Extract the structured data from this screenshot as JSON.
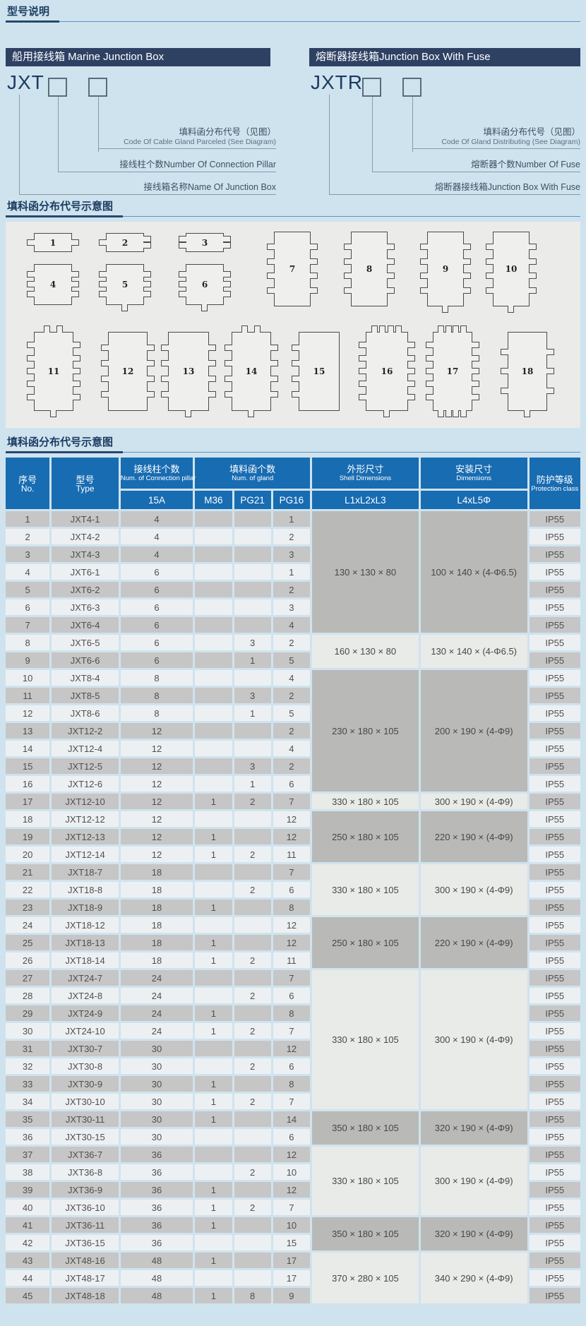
{
  "titles": {
    "model": "型号说明",
    "diagram": "填科函分布代号示意图",
    "table": "填科函分布代号示意图"
  },
  "marine_box": {
    "header": "船用接线箱 Marine Junction Box",
    "code": "JXT",
    "label1_zh": "填料函分布代号（见图）",
    "label1_en": "Code Of Cable Gland Parceled (See Diagram)",
    "label2": "接线柱个数Number Of Connection Pillar",
    "label3": "接线箱名称Name Of Junction Box"
  },
  "fuse_box": {
    "header": "熔断器接线箱Junction Box With Fuse",
    "code": "JXTR",
    "label1_zh": "填料函分布代号（见图）",
    "label1_en": "Code Of Gland Distributing (See Diagram)",
    "label2": "熔断器个数Number Of Fuse",
    "label3": "熔断器接线箱Junction Box With Fuse"
  },
  "diagram": {
    "boxes": [
      {
        "n": "1",
        "l": 1,
        "r": 1,
        "t": 0,
        "b": 0
      },
      {
        "n": "2",
        "l": 1,
        "r": 2,
        "t": 0,
        "b": 0
      },
      {
        "n": "3",
        "l": 2,
        "r": 2,
        "t": 0,
        "b": 0
      },
      {
        "n": "4",
        "l": 3,
        "r": 3,
        "t": 0,
        "b": 0
      },
      {
        "n": "5",
        "l": 3,
        "r": 3,
        "t": 0,
        "b": 1
      },
      {
        "n": "6",
        "l": 3,
        "r": 3,
        "t": 0,
        "b": 1
      },
      {
        "n": "7",
        "l": 4,
        "r": 4,
        "t": 0,
        "b": 0
      },
      {
        "n": "8",
        "l": 4,
        "r": 4,
        "t": 0,
        "b": 0
      },
      {
        "n": "9",
        "l": 4,
        "r": 4,
        "t": 0,
        "b": 1
      },
      {
        "n": "10",
        "l": 4,
        "r": 4,
        "t": 0,
        "b": 1
      },
      {
        "n": "11",
        "l": 5,
        "r": 5,
        "t": 2,
        "b": 1
      },
      {
        "n": "12",
        "l": 4,
        "r": 4,
        "t": 0,
        "b": 0
      },
      {
        "n": "13",
        "l": 4,
        "r": 4,
        "t": 0,
        "b": 1
      },
      {
        "n": "14",
        "l": 4,
        "r": 4,
        "t": 2,
        "b": 1
      },
      {
        "n": "15",
        "l": 4,
        "r": 0,
        "t": 0,
        "b": 0
      },
      {
        "n": "16",
        "l": 5,
        "r": 5,
        "t": 4,
        "b": 1
      },
      {
        "n": "17",
        "l": 5,
        "r": 5,
        "t": 4,
        "b": 4
      },
      {
        "n": "18",
        "l": 3,
        "r": 3,
        "t": 0,
        "b": 1
      }
    ]
  },
  "table": {
    "headers": {
      "no_zh": "序号",
      "no_en": "No.",
      "type_zh": "型号",
      "type_en": "Type",
      "pillar_zh": "接线柱个数",
      "pillar_en": "Num. of Connection pillar",
      "pillar_sub": "15A",
      "gland_zh": "填料函个数",
      "gland_en": "Num. of gland",
      "gland_sub": [
        "M36",
        "PG21",
        "PG16"
      ],
      "shell_zh": "外形尺寸",
      "shell_en": "Shell Dimensions",
      "shell_sub": "L1xL2xL3",
      "mount_zh": "安装尺寸",
      "mount_en": "Dimensions",
      "mount_sub": "L4xL5Φ",
      "ip_zh": "防护等级",
      "ip_en": "Protection class"
    },
    "columns": [
      "no",
      "type",
      "15a",
      "m36",
      "pg21",
      "pg16",
      "ip"
    ],
    "rows": [
      [
        "1",
        "JXT4-1",
        "4",
        "",
        "",
        "1",
        "IP55"
      ],
      [
        "2",
        "JXT4-2",
        "4",
        "",
        "",
        "2",
        "IP55"
      ],
      [
        "3",
        "JXT4-3",
        "4",
        "",
        "",
        "3",
        "IP55"
      ],
      [
        "4",
        "JXT6-1",
        "6",
        "",
        "",
        "1",
        "IP55"
      ],
      [
        "5",
        "JXT6-2",
        "6",
        "",
        "",
        "2",
        "IP55"
      ],
      [
        "6",
        "JXT6-3",
        "6",
        "",
        "",
        "3",
        "IP55"
      ],
      [
        "7",
        "JXT6-4",
        "6",
        "",
        "",
        "4",
        "IP55"
      ],
      [
        "8",
        "JXT6-5",
        "6",
        "",
        "3",
        "2",
        "IP55"
      ],
      [
        "9",
        "JXT6-6",
        "6",
        "",
        "1",
        "5",
        "IP55"
      ],
      [
        "10",
        "JXT8-4",
        "8",
        "",
        "",
        "4",
        "IP55"
      ],
      [
        "11",
        "JXT8-5",
        "8",
        "",
        "3",
        "2",
        "IP55"
      ],
      [
        "12",
        "JXT8-6",
        "8",
        "",
        "1",
        "5",
        "IP55"
      ],
      [
        "13",
        "JXT12-2",
        "12",
        "",
        "",
        "2",
        "IP55"
      ],
      [
        "14",
        "JXT12-4",
        "12",
        "",
        "",
        "4",
        "IP55"
      ],
      [
        "15",
        "JXT12-5",
        "12",
        "",
        "3",
        "2",
        "IP55"
      ],
      [
        "16",
        "JXT12-6",
        "12",
        "",
        "1",
        "6",
        "IP55"
      ],
      [
        "17",
        "JXT12-10",
        "12",
        "1",
        "2",
        "7",
        "IP55"
      ],
      [
        "18",
        "JXT12-12",
        "12",
        "",
        "",
        "12",
        "IP55"
      ],
      [
        "19",
        "JXT12-13",
        "12",
        "1",
        "",
        "12",
        "IP55"
      ],
      [
        "20",
        "JXT12-14",
        "12",
        "1",
        "2",
        "11",
        "IP55"
      ],
      [
        "21",
        "JXT18-7",
        "18",
        "",
        "",
        "7",
        "IP55"
      ],
      [
        "22",
        "JXT18-8",
        "18",
        "",
        "2",
        "6",
        "IP55"
      ],
      [
        "23",
        "JXT18-9",
        "18",
        "1",
        "",
        "8",
        "IP55"
      ],
      [
        "24",
        "JXT18-12",
        "18",
        "",
        "",
        "12",
        "IP55"
      ],
      [
        "25",
        "JXT18-13",
        "18",
        "1",
        "",
        "12",
        "IP55"
      ],
      [
        "26",
        "JXT18-14",
        "18",
        "1",
        "2",
        "11",
        "IP55"
      ],
      [
        "27",
        "JXT24-7",
        "24",
        "",
        "",
        "7",
        "IP55"
      ],
      [
        "28",
        "JXT24-8",
        "24",
        "",
        "2",
        "6",
        "IP55"
      ],
      [
        "29",
        "JXT24-9",
        "24",
        "1",
        "",
        "8",
        "IP55"
      ],
      [
        "30",
        "JXT24-10",
        "24",
        "1",
        "2",
        "7",
        "IP55"
      ],
      [
        "31",
        "JXT30-7",
        "30",
        "",
        "",
        "12",
        "IP55"
      ],
      [
        "32",
        "JXT30-8",
        "30",
        "",
        "2",
        "6",
        "IP55"
      ],
      [
        "33",
        "JXT30-9",
        "30",
        "1",
        "",
        "8",
        "IP55"
      ],
      [
        "34",
        "JXT30-10",
        "30",
        "1",
        "2",
        "7",
        "IP55"
      ],
      [
        "35",
        "JXT30-11",
        "30",
        "1",
        "",
        "14",
        "IP55"
      ],
      [
        "36",
        "JXT30-15",
        "30",
        "",
        "",
        "6",
        "IP55"
      ],
      [
        "37",
        "JXT36-7",
        "36",
        "",
        "",
        "12",
        "IP55"
      ],
      [
        "38",
        "JXT36-8",
        "36",
        "",
        "2",
        "10",
        "IP55"
      ],
      [
        "39",
        "JXT36-9",
        "36",
        "1",
        "",
        "12",
        "IP55"
      ],
      [
        "40",
        "JXT36-10",
        "36",
        "1",
        "2",
        "7",
        "IP55"
      ],
      [
        "41",
        "JXT36-11",
        "36",
        "1",
        "",
        "10",
        "IP55"
      ],
      [
        "42",
        "JXT36-15",
        "36",
        "",
        "",
        "15",
        "IP55"
      ],
      [
        "43",
        "JXT48-16",
        "48",
        "1",
        "",
        "17",
        "IP55"
      ],
      [
        "44",
        "JXT48-17",
        "48",
        "",
        "",
        "17",
        "IP55"
      ],
      [
        "45",
        "JXT48-18",
        "48",
        "1",
        "8",
        "9",
        "IP55"
      ]
    ],
    "dim_blocks": [
      {
        "start": 1,
        "span": 7,
        "shell": "130 × 130 × 80",
        "mount": "100 × 140 × (4-Φ6.5)",
        "shade": "dark"
      },
      {
        "start": 8,
        "span": 2,
        "shell": "160 × 130 × 80",
        "mount": "130 × 140 × (4-Φ6.5)",
        "shade": "light"
      },
      {
        "start": 10,
        "span": 7,
        "shell": "230 × 180 × 105",
        "mount": "200 × 190 × (4-Φ9)",
        "shade": "dark"
      },
      {
        "start": 17,
        "span": 1,
        "shell": "330 × 180 × 105",
        "mount": "300 × 190 × (4-Φ9)",
        "shade": "light"
      },
      {
        "start": 18,
        "span": 3,
        "shell": "250 × 180 × 105",
        "mount": "220 × 190 × (4-Φ9)",
        "shade": "dark"
      },
      {
        "start": 21,
        "span": 3,
        "shell": "330 × 180 × 105",
        "mount": "300 × 190 × (4-Φ9)",
        "shade": "light"
      },
      {
        "start": 24,
        "span": 3,
        "shell": "250 × 180 × 105",
        "mount": "220 × 190 × (4-Φ9)",
        "shade": "dark"
      },
      {
        "start": 27,
        "span": 8,
        "shell": "330 × 180 × 105",
        "mount": "300 × 190 × (4-Φ9)",
        "shade": "light"
      },
      {
        "start": 35,
        "span": 2,
        "shell": "350 × 180 × 105",
        "mount": "320 × 190 × (4-Φ9)",
        "shade": "dark"
      },
      {
        "start": 37,
        "span": 4,
        "shell": "330 × 180 × 105",
        "mount": "300 × 190 × (4-Φ9)",
        "shade": "light"
      },
      {
        "start": 41,
        "span": 2,
        "shell": "350 × 180 × 105",
        "mount": "320 × 190 × (4-Φ9)",
        "shade": "dark"
      },
      {
        "start": 43,
        "span": 3,
        "shell": "370 × 280 × 105",
        "mount": "340 × 290 × (4-Φ9)",
        "shade": "light"
      }
    ],
    "colors": {
      "header_blue": "#186cb2",
      "row_odd": "#c6c6c6",
      "row_even": "#edf0f2",
      "dim_dark": "#b9b9b7",
      "dim_light": "#e9ebe8",
      "navy_bar": "#2e4163",
      "page_bg": "#cfe3ef"
    }
  }
}
